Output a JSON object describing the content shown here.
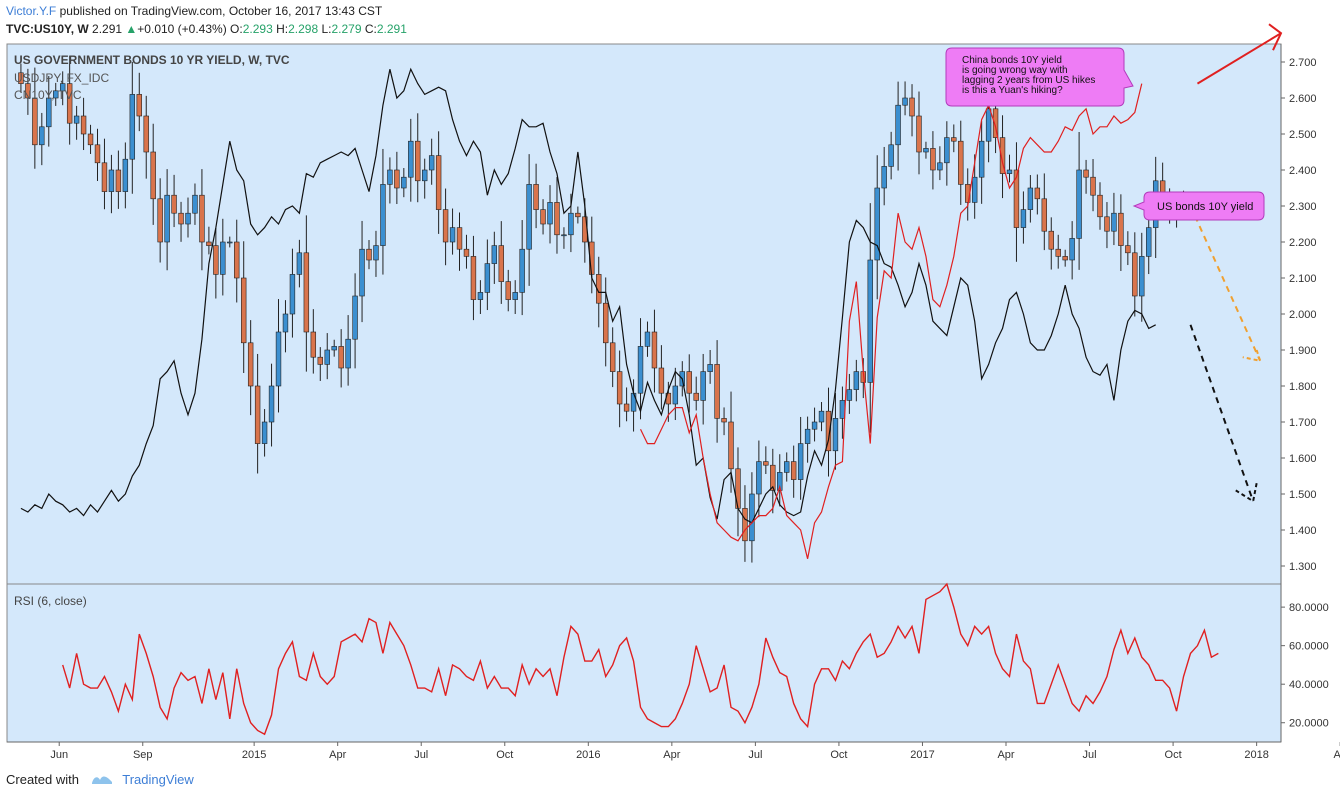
{
  "header": {
    "author": "Victor.Y.F",
    "published_text": "published on TradingView.com, October 16, 2017 13:43 CST",
    "symbol": "TVC:US10Y, W",
    "last": "2.291",
    "change": "+0.010 (+0.43%)",
    "open_label": "O:",
    "open": "2.293",
    "high_label": "H:",
    "high": "2.298",
    "low_label": "L:",
    "low": "2.279",
    "close_label": "C:",
    "close": "2.291"
  },
  "legend": {
    "main": "US GOVERNMENT BONDS 10 YR YIELD, W, TVC",
    "overlay1": "USDJPY, FX_IDC",
    "overlay2": "CN10Y, TVC"
  },
  "annotations": {
    "china_note": "China bonds 10Y yield\nis going wrong way with\nlagging 2 years from US hikes\nis this a Yuan's hiking?",
    "us_note": "US bonds 10Y yield"
  },
  "footer": {
    "created_with": "Created with",
    "brand": "TradingView"
  },
  "colors": {
    "panel_bg": "#d4e8fb",
    "bull": "#3b8fd0",
    "bear": "#d9744c",
    "cn10y": "#e02020",
    "usdjpy": "#111111",
    "rsi": "#e02020",
    "callout": "#ee7cf5",
    "projection_orange": "#f0a030"
  },
  "chart_data": {
    "type": "candlestick",
    "title": "US GOVERNMENT BONDS 10 YR YIELD, W, TVC",
    "y_axis": {
      "range": [
        1.25,
        2.75
      ],
      "ticks": [
        1.3,
        1.4,
        1.5,
        1.6,
        1.7,
        1.8,
        1.9,
        2.0,
        2.1,
        2.2,
        2.3,
        2.4,
        2.5,
        2.6,
        2.7
      ]
    },
    "x_axis": {
      "range_week": [
        -2,
        181
      ],
      "tick_labels": [
        {
          "label": "Jun",
          "week": 5.5
        },
        {
          "label": "Sep",
          "week": 17.5
        },
        {
          "label": "2015",
          "week": 33.5
        },
        {
          "label": "Apr",
          "week": 45.5
        },
        {
          "label": "Jul",
          "week": 57.5
        },
        {
          "label": "Oct",
          "week": 69.5
        },
        {
          "label": "2016",
          "week": 81.5
        },
        {
          "label": "Apr",
          "week": 93.5
        },
        {
          "label": "Jul",
          "week": 105.5
        },
        {
          "label": "Oct",
          "week": 117.5
        },
        {
          "label": "2017",
          "week": 129.5
        },
        {
          "label": "Apr",
          "week": 141.5
        },
        {
          "label": "Jul",
          "week": 153.5
        },
        {
          "label": "Oct",
          "week": 165.5
        },
        {
          "label": "2018",
          "week": 177.5
        },
        {
          "label": "Ap",
          "week": 189.5
        }
      ]
    },
    "close_weekly": [
      2.64,
      2.6,
      2.47,
      2.52,
      2.6,
      2.62,
      2.64,
      2.53,
      2.55,
      2.5,
      2.47,
      2.42,
      2.34,
      2.4,
      2.34,
      2.43,
      2.61,
      2.55,
      2.45,
      2.32,
      2.2,
      2.33,
      2.28,
      2.25,
      2.28,
      2.33,
      2.2,
      2.19,
      2.11,
      2.2,
      2.2,
      2.1,
      1.92,
      1.8,
      1.64,
      1.7,
      1.8,
      1.95,
      2.0,
      2.11,
      2.17,
      1.95,
      1.88,
      1.86,
      1.9,
      1.91,
      1.85,
      1.93,
      2.05,
      2.18,
      2.15,
      2.19,
      2.36,
      2.4,
      2.35,
      2.38,
      2.48,
      2.37,
      2.4,
      2.44,
      2.29,
      2.2,
      2.24,
      2.18,
      2.16,
      2.04,
      2.06,
      2.14,
      2.19,
      2.09,
      2.04,
      2.06,
      2.18,
      2.36,
      2.29,
      2.25,
      2.31,
      2.22,
      2.22,
      2.28,
      2.27,
      2.2,
      2.11,
      2.03,
      1.92,
      1.84,
      1.75,
      1.73,
      1.78,
      1.91,
      1.95,
      1.85,
      1.78,
      1.75,
      1.8,
      1.84,
      1.78,
      1.76,
      1.84,
      1.86,
      1.71,
      1.7,
      1.57,
      1.46,
      1.37,
      1.5,
      1.59,
      1.58,
      1.51,
      1.56,
      1.59,
      1.54,
      1.64,
      1.68,
      1.7,
      1.73,
      1.62,
      1.71,
      1.76,
      1.79,
      1.84,
      1.81,
      2.15,
      2.35,
      2.41,
      2.47,
      2.58,
      2.6,
      2.55,
      2.45,
      2.46,
      2.4,
      2.42,
      2.49,
      2.48,
      2.36,
      2.31,
      2.38,
      2.48,
      2.57,
      2.49,
      2.39,
      2.4,
      2.24,
      2.29,
      2.35,
      2.32,
      2.23,
      2.18,
      2.16,
      2.15,
      2.21,
      2.4,
      2.38,
      2.33,
      2.27,
      2.23,
      2.28,
      2.19,
      2.17,
      2.05,
      2.16,
      2.24,
      2.37,
      2.32,
      2.28,
      2.3,
      2.29
    ],
    "cn10y_weekly": {
      "start_week": 89,
      "values": [
        1.68,
        1.64,
        1.64,
        1.68,
        1.72,
        1.74,
        1.74,
        1.67,
        1.72,
        1.6,
        1.5,
        1.42,
        1.4,
        1.38,
        1.37,
        1.4,
        1.42,
        1.44,
        1.44,
        1.46,
        1.52,
        1.44,
        1.42,
        1.4,
        1.32,
        1.42,
        1.45,
        1.52,
        1.58,
        1.59,
        1.98,
        2.09,
        1.84,
        1.64,
        1.99,
        2.12,
        2.1,
        2.28,
        2.2,
        2.18,
        2.24,
        2.16,
        2.04,
        2.02,
        2.08,
        2.16,
        2.28,
        2.3,
        2.42,
        2.54,
        2.58,
        2.52,
        2.42,
        2.35,
        2.38,
        2.46,
        2.49,
        2.47,
        2.45,
        2.45,
        2.48,
        2.52,
        2.51,
        2.55,
        2.57,
        2.5,
        2.52,
        2.52,
        2.55,
        2.53,
        2.54,
        2.56,
        2.64
      ]
    },
    "usdjpy_relative_weekly": [
      1.46,
      1.45,
      1.47,
      1.46,
      1.5,
      1.48,
      1.47,
      1.45,
      1.46,
      1.44,
      1.47,
      1.45,
      1.48,
      1.51,
      1.48,
      1.5,
      1.55,
      1.58,
      1.64,
      1.69,
      1.82,
      1.84,
      1.87,
      1.78,
      1.72,
      1.78,
      1.93,
      2.14,
      2.24,
      2.36,
      2.48,
      2.4,
      2.37,
      2.25,
      2.22,
      2.24,
      2.27,
      2.25,
      2.29,
      2.3,
      2.28,
      2.39,
      2.38,
      2.42,
      2.43,
      2.44,
      2.45,
      2.44,
      2.46,
      2.4,
      2.34,
      2.44,
      2.58,
      2.68,
      2.6,
      2.62,
      2.68,
      2.64,
      2.61,
      2.62,
      2.63,
      2.62,
      2.54,
      2.48,
      2.44,
      2.48,
      2.45,
      2.33,
      2.4,
      2.36,
      2.39,
      2.46,
      2.54,
      2.52,
      2.52,
      2.53,
      2.45,
      2.39,
      2.28,
      2.3,
      2.45,
      2.3,
      2.1,
      2.06,
      2.06,
      1.98,
      2.02,
      1.86,
      1.78,
      1.73,
      1.81,
      1.76,
      1.72,
      1.79,
      1.84,
      1.82,
      1.72,
      1.58,
      1.6,
      1.49,
      1.43,
      1.54,
      1.56,
      1.46,
      1.43,
      1.42,
      1.46,
      1.5,
      1.52,
      1.47,
      1.45,
      1.44,
      1.45,
      1.55,
      1.62,
      1.58,
      1.65,
      1.79,
      1.99,
      2.2,
      2.26,
      2.24,
      2.2,
      2.19,
      2.14,
      2.13,
      2.08,
      2.02,
      2.06,
      2.14,
      2.08,
      1.98,
      1.96,
      1.94,
      2.02,
      2.1,
      2.08,
      1.98,
      1.82,
      1.86,
      1.92,
      1.96,
      2.04,
      2.06,
      2.0,
      1.92,
      1.9,
      1.9,
      1.94,
      2.0,
      2.08,
      2.0,
      1.96,
      1.88,
      1.84,
      1.83,
      1.86,
      1.76,
      1.9,
      1.98,
      2.01,
      2.0,
      1.96,
      1.97
    ],
    "projections": [
      {
        "series": "US10Y",
        "style": "dashed orange",
        "points": [
          [
            168,
            2.3
          ],
          [
            178,
            1.87
          ]
        ]
      },
      {
        "series": "USDJPY",
        "style": "dashed black",
        "points": [
          [
            168,
            1.97
          ],
          [
            177,
            1.48
          ]
        ]
      },
      {
        "series": "CN10Y",
        "style": "solid red arrow",
        "points": [
          [
            169,
            2.64
          ],
          [
            181,
            2.78
          ]
        ]
      }
    ],
    "rsi": {
      "label": "RSI (6, close)",
      "range": [
        10,
        92
      ],
      "ticks": [
        20,
        40,
        60,
        80
      ],
      "tick_format": "0000",
      "start_week": 6,
      "values": [
        50,
        38,
        56,
        40,
        38,
        38,
        44,
        36,
        26,
        40,
        32,
        66,
        56,
        44,
        28,
        22,
        38,
        46,
        42,
        44,
        30,
        48,
        32,
        46,
        22,
        48,
        30,
        20,
        16,
        14,
        24,
        48,
        56,
        62,
        44,
        42,
        56,
        44,
        40,
        44,
        62,
        64,
        66,
        62,
        74,
        72,
        56,
        72,
        66,
        60,
        50,
        38,
        38,
        36,
        48,
        34,
        50,
        48,
        44,
        42,
        52,
        38,
        44,
        38,
        38,
        34,
        50,
        40,
        48,
        44,
        48,
        34,
        54,
        70,
        66,
        52,
        52,
        58,
        44,
        50,
        60,
        64,
        52,
        28,
        22,
        20,
        18,
        18,
        22,
        30,
        40,
        60,
        48,
        36,
        38,
        50,
        28,
        26,
        20,
        28,
        40,
        64,
        54,
        46,
        44,
        30,
        22,
        18,
        40,
        48,
        48,
        42,
        52,
        48,
        56,
        62,
        66,
        54,
        56,
        62,
        70,
        64,
        70,
        56,
        84,
        86,
        88,
        92,
        80,
        66,
        60,
        70,
        66,
        70,
        56,
        48,
        44,
        66,
        52,
        48,
        30,
        30,
        40,
        50,
        40,
        30,
        26,
        34,
        30,
        36,
        44,
        58,
        68,
        56,
        64,
        54,
        50,
        42,
        42,
        38,
        26,
        44,
        56,
        60,
        68,
        54,
        56
      ]
    }
  }
}
